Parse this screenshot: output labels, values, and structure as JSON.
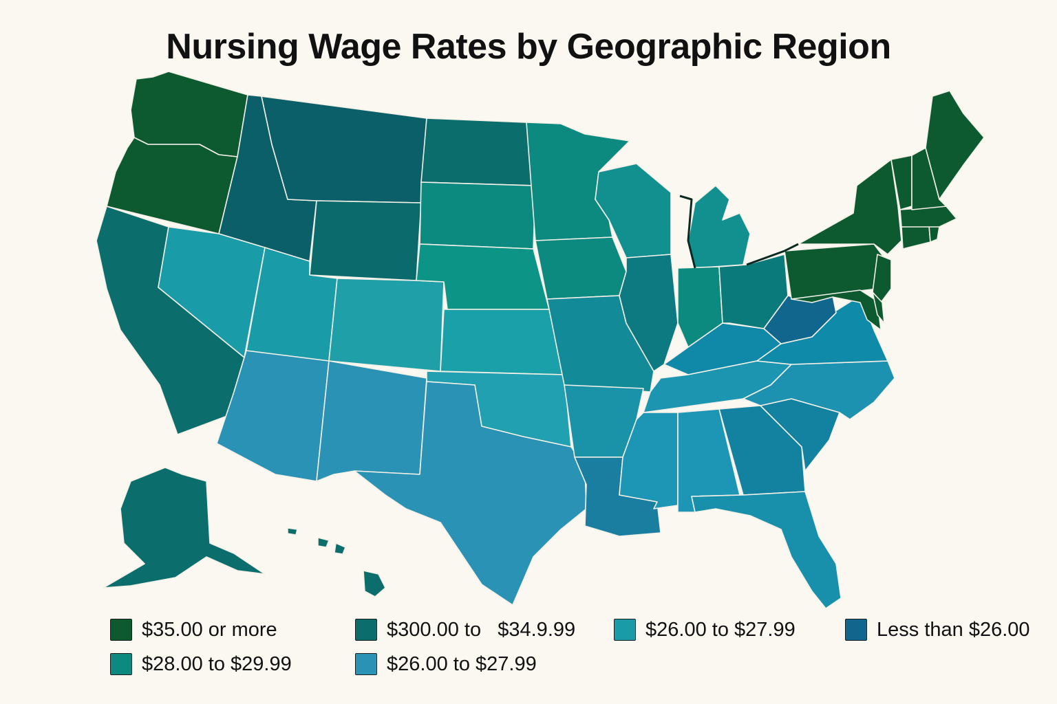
{
  "title": "Nursing Wage Rates by Geographic Region",
  "colors": {
    "tier_35_plus": "#0d5a30",
    "tier_30_34": "#0b6e6c",
    "tier_28_29": "#0c8a80",
    "tier_26_27_teal": "#1a9ca8",
    "tier_26_27_blue": "#2a92b4",
    "tier_under_26": "#11668e"
  },
  "legend": [
    {
      "label": "$35.00 or more",
      "color": "#0d5a30"
    },
    {
      "label": "$300.00 to   $34.9.99",
      "color": "#0b6e6c"
    },
    {
      "label": "$26.00 to $27.99",
      "color": "#1a9ca8"
    },
    {
      "label": "Less than $26.00",
      "color": "#11668e"
    },
    {
      "label": "$28.00 to $29.99",
      "color": "#0c8a80"
    },
    {
      "label": "$26.00 to $27.99",
      "color": "#2a92b4"
    }
  ],
  "regions": [
    {
      "name": "Washington",
      "color": "#0d5a30"
    },
    {
      "name": "Oregon",
      "color": "#0d5a30"
    },
    {
      "name": "California",
      "color": "#0b6e6c"
    },
    {
      "name": "Idaho",
      "color": "#0b5f68"
    },
    {
      "name": "Nevada",
      "color": "#1a9ca8"
    },
    {
      "name": "Montana",
      "color": "#0b5f68"
    },
    {
      "name": "Wyoming",
      "color": "#0b6a6c"
    },
    {
      "name": "Utah",
      "color": "#1a9ca8"
    },
    {
      "name": "Colorado",
      "color": "#1fa0a8"
    },
    {
      "name": "Arizona",
      "color": "#2a92b4"
    },
    {
      "name": "New Mexico",
      "color": "#2a92b4"
    },
    {
      "name": "North Dakota",
      "color": "#0b6e6c"
    },
    {
      "name": "South Dakota",
      "color": "#0c8a80"
    },
    {
      "name": "Nebraska",
      "color": "#0c9486"
    },
    {
      "name": "Kansas",
      "color": "#1aa0a8"
    },
    {
      "name": "Oklahoma",
      "color": "#20a0b0"
    },
    {
      "name": "Texas",
      "color": "#2a92b4"
    },
    {
      "name": "Minnesota",
      "color": "#0c8a80"
    },
    {
      "name": "Iowa",
      "color": "#0c8a80"
    },
    {
      "name": "Missouri",
      "color": "#128a98"
    },
    {
      "name": "Arkansas",
      "color": "#1a92a8"
    },
    {
      "name": "Louisiana",
      "color": "#1a7ea0"
    },
    {
      "name": "Wisconsin",
      "color": "#129090"
    },
    {
      "name": "Illinois",
      "color": "#0c7a80"
    },
    {
      "name": "Michigan",
      "color": "#129090"
    },
    {
      "name": "Indiana",
      "color": "#0c8a80"
    },
    {
      "name": "Ohio",
      "color": "#0b7a7a"
    },
    {
      "name": "Kentucky",
      "color": "#1088a8"
    },
    {
      "name": "Tennessee",
      "color": "#1c96b0"
    },
    {
      "name": "Mississippi",
      "color": "#1c96b4"
    },
    {
      "name": "Alabama",
      "color": "#1c96b4"
    },
    {
      "name": "Georgia",
      "color": "#1282a0"
    },
    {
      "name": "Florida",
      "color": "#1890ac"
    },
    {
      "name": "South Carolina",
      "color": "#1282a0"
    },
    {
      "name": "North Carolina",
      "color": "#1c92b0"
    },
    {
      "name": "Virginia",
      "color": "#0f8aa8"
    },
    {
      "name": "West Virginia",
      "color": "#11668e"
    },
    {
      "name": "Pennsylvania",
      "color": "#0d5a30"
    },
    {
      "name": "New York",
      "color": "#0d5a30"
    },
    {
      "name": "New Jersey",
      "color": "#0d5a30"
    },
    {
      "name": "Maryland",
      "color": "#0d5a30"
    },
    {
      "name": "Delaware",
      "color": "#0d5a30"
    },
    {
      "name": "Connecticut",
      "color": "#0d5a30"
    },
    {
      "name": "Rhode Island",
      "color": "#0d5a30"
    },
    {
      "name": "Massachusetts",
      "color": "#0d5a30"
    },
    {
      "name": "Vermont",
      "color": "#0d5a30"
    },
    {
      "name": "New Hampshire",
      "color": "#0d5a30"
    },
    {
      "name": "Maine",
      "color": "#0d5a30"
    },
    {
      "name": "Alaska",
      "color": "#0b6e6c"
    },
    {
      "name": "Hawaii",
      "color": "#0b6e6c"
    }
  ]
}
